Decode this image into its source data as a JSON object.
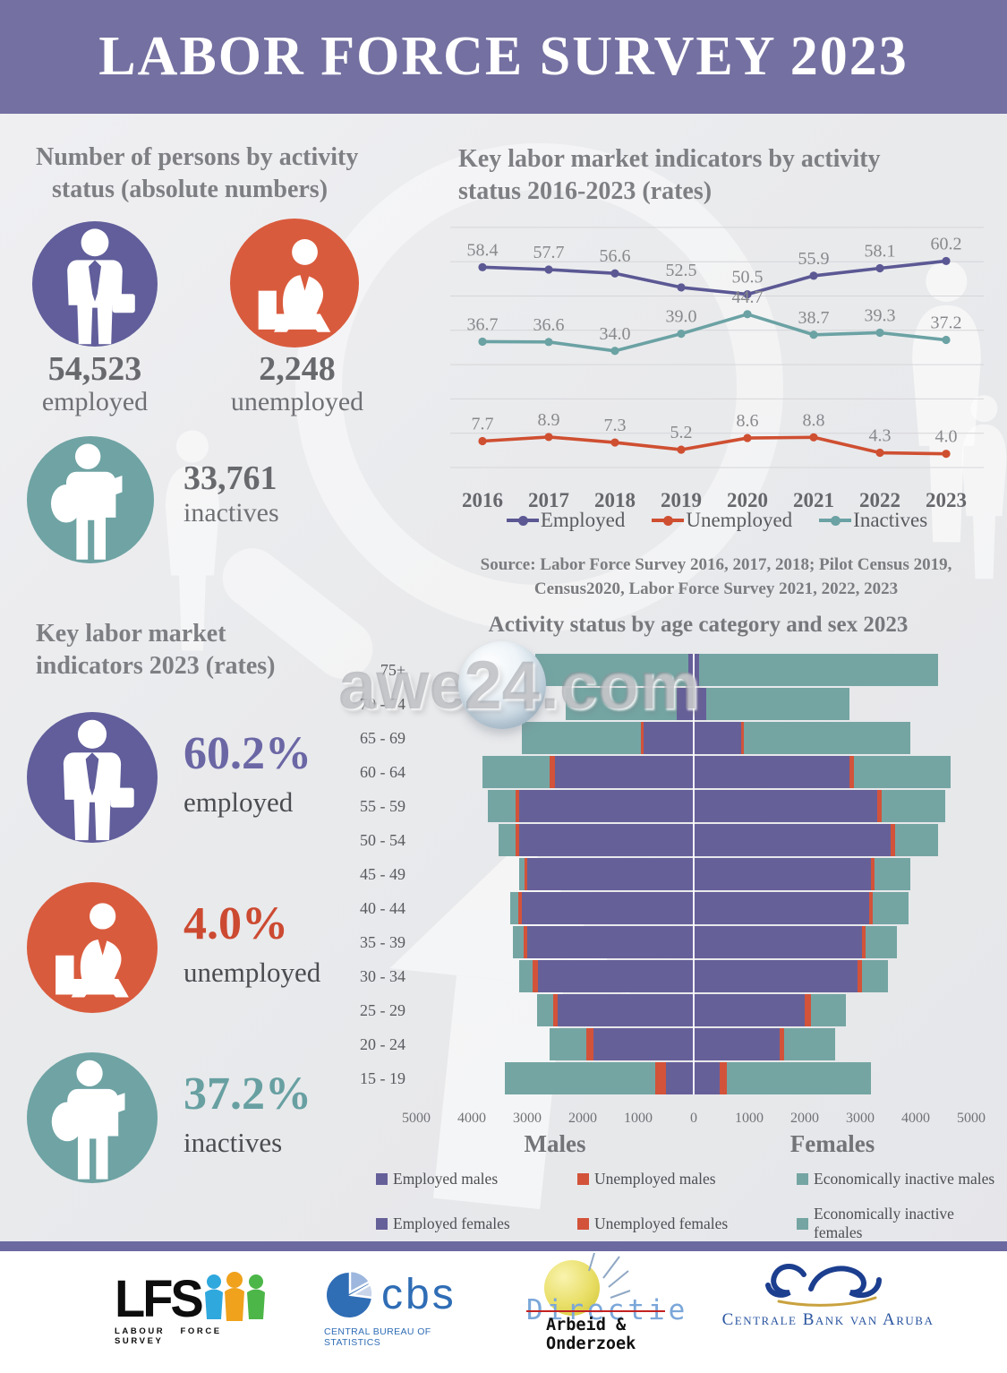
{
  "page": {
    "title": "LABOR FORCE SURVEY 2023"
  },
  "watermark": {
    "pre": "awe",
    "num": "24",
    "post": ".com"
  },
  "left": {
    "section1": {
      "title_line1": "Number of persons by activity",
      "title_line2": "status (absolute numbers)",
      "stats": [
        {
          "id": "employed",
          "value": "54,523",
          "label": "employed",
          "color": "#615e9b"
        },
        {
          "id": "unemployed",
          "value": "2,248",
          "label": "unemployed",
          "color": "#d95b3d"
        },
        {
          "id": "inactives",
          "value": "33,761",
          "label": "inactives",
          "color": "#6fa3a4"
        }
      ]
    },
    "section2": {
      "title_line1": "Key labor market",
      "title_line2": "indicators 2023 (rates)",
      "rates": [
        {
          "id": "employed",
          "value": "60.2%",
          "label": "employed",
          "color": "#615e9b",
          "value_color": "#6b67a5"
        },
        {
          "id": "unemployed",
          "value": "4.0%",
          "label": "unemployed",
          "color": "#d95b3d",
          "value_color": "#cc4a31"
        },
        {
          "id": "inactives",
          "value": "37.2%",
          "label": "inactives",
          "color": "#6fa3a4",
          "value_color": "#68a0a2"
        }
      ]
    }
  },
  "right": {
    "chart1": {
      "title_line1": "Key labor market indicators by activity",
      "title_line2": "status 2016-2023 (rates)",
      "source_line1": "Source: Labor Force Survey 2016, 2017, 2018; Pilot Census 2019,",
      "source_line2": "Census2020, Labor Force Survey 2021, 2022, 2023"
    }
  },
  "chart_data": [
    {
      "type": "line",
      "title": "Key labor market indicators by activity status 2016-2023 (rates)",
      "x": [
        "2016",
        "2017",
        "2018",
        "2019",
        "2020",
        "2021",
        "2022",
        "2023"
      ],
      "series": [
        {
          "name": "Employed",
          "color": "#5b5894",
          "values": [
            58.4,
            57.7,
            56.6,
            52.5,
            50.5,
            55.9,
            58.1,
            60.2
          ]
        },
        {
          "name": "Unemployed",
          "color": "#cf4f31",
          "values": [
            7.7,
            8.9,
            7.3,
            5.2,
            8.6,
            8.8,
            4.3,
            4.0
          ]
        },
        {
          "name": "Inactives",
          "color": "#6ba2a4",
          "values": [
            36.7,
            36.6,
            34.0,
            39.0,
            44.7,
            38.7,
            39.3,
            37.2
          ]
        }
      ],
      "ylim": [
        0,
        70
      ],
      "grid_step": 10,
      "grid": "horizontal",
      "data_labels": true,
      "legend_position": "bottom"
    },
    {
      "type": "population-pyramid-stacked-bar",
      "title": "Activity status by age category and sex 2023",
      "age_categories": [
        "75+",
        "70 - 74",
        "65 - 69",
        "60 - 64",
        "55 - 59",
        "50 - 54",
        "45 - 49",
        "40 - 44",
        "35 - 39",
        "30 - 34",
        "25 - 29",
        "20 - 24",
        "15 - 19"
      ],
      "unit": "persons",
      "xlim": 5000,
      "x_ticks": [
        "5000",
        "4000",
        "3000",
        "2000",
        "1000",
        "0",
        "1000",
        "2000",
        "3000",
        "4000",
        "5000"
      ],
      "side_labels": {
        "left": "Males",
        "right": "Females"
      },
      "colors": {
        "employed": "#666099",
        "unemployed": "#d2533a",
        "inactive": "#74a5a3"
      },
      "males": {
        "employed": [
          100,
          300,
          900,
          2500,
          3150,
          3150,
          3000,
          3100,
          3000,
          2800,
          2450,
          1800,
          500
        ],
        "unemployed": [
          0,
          0,
          50,
          100,
          60,
          60,
          50,
          60,
          60,
          100,
          90,
          130,
          200
        ],
        "inactive": [
          2750,
          2000,
          2150,
          1200,
          500,
          300,
          100,
          150,
          200,
          250,
          280,
          670,
          2700
        ]
      },
      "females": {
        "employed": [
          100,
          230,
          850,
          2800,
          3300,
          3550,
          3200,
          3160,
          3030,
          2950,
          2000,
          1550,
          470
        ],
        "unemployed": [
          0,
          0,
          50,
          80,
          80,
          80,
          60,
          70,
          70,
          80,
          120,
          80,
          130
        ],
        "inactive": [
          4300,
          2570,
          3000,
          1750,
          1150,
          770,
          640,
          640,
          560,
          470,
          630,
          920,
          2600
        ]
      },
      "legend": [
        {
          "label": "Employed males",
          "color": "#666099"
        },
        {
          "label": "Unemployed males",
          "color": "#d2533a"
        },
        {
          "label": "Economically inactive males",
          "color": "#74a5a3"
        },
        {
          "label": "Employed females",
          "color": "#666099"
        },
        {
          "label": "Unemployed females",
          "color": "#d2533a"
        },
        {
          "label": "Economically inactive females",
          "color": "#74a5a3"
        }
      ]
    }
  ],
  "footer": {
    "lfs": {
      "acronym": "LFS",
      "caption": "LABOUR FORCE SURVEY"
    },
    "cbs": {
      "acronym": "cbs",
      "caption": "CENTRAL BUREAU OF STATISTICS"
    },
    "dao": {
      "line1": "Directie",
      "line2": "Arbeid & Onderzoek"
    },
    "cba": {
      "caption": "Centrale Bank van Aruba"
    }
  }
}
